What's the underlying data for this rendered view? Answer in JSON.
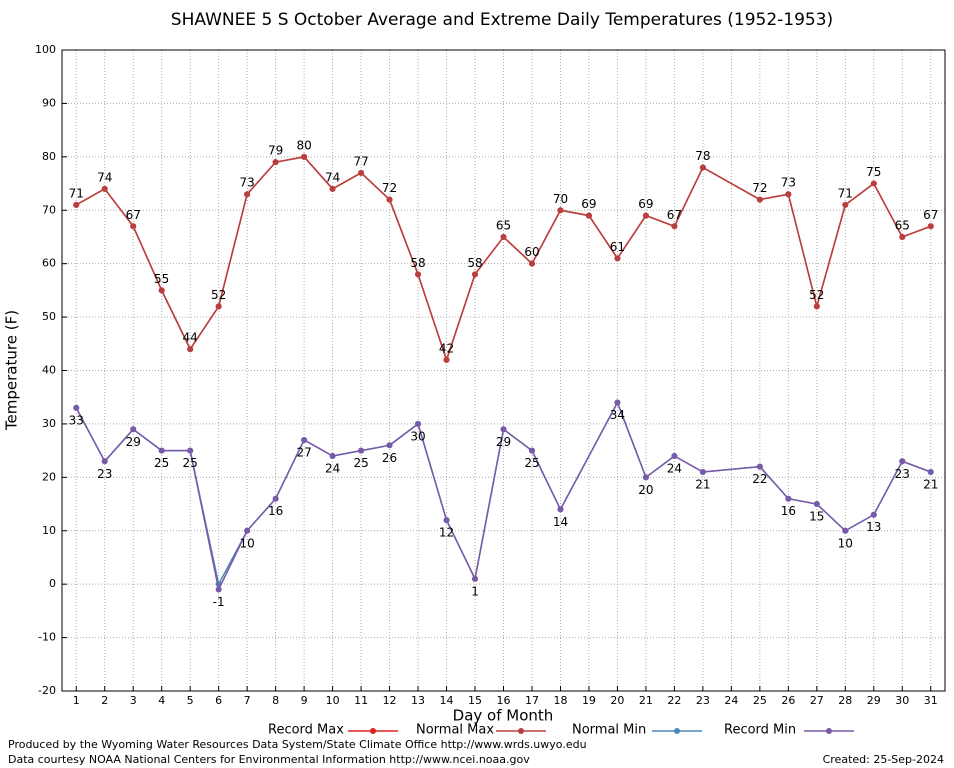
{
  "chart_data": {
    "type": "line",
    "title": "SHAWNEE 5 S October Average and Extreme Daily Temperatures (1952-1953)",
    "x_label": "Day of Month",
    "y_label": "Temperature (F)",
    "xlim": [
      0.5,
      31.5
    ],
    "xticks": [
      1,
      2,
      3,
      4,
      5,
      6,
      7,
      8,
      9,
      10,
      11,
      12,
      13,
      14,
      15,
      16,
      17,
      18,
      19,
      20,
      21,
      22,
      23,
      24,
      25,
      26,
      27,
      28,
      29,
      30,
      31
    ],
    "ylim": [
      -20,
      100
    ],
    "yticks": [
      -20,
      -10,
      0,
      10,
      20,
      30,
      40,
      50,
      60,
      70,
      80,
      90,
      100
    ],
    "grid": true,
    "legend": "bottom",
    "series": [
      {
        "name": "Record Max",
        "color": "#e02020",
        "x": [
          1,
          2,
          3,
          4,
          5,
          6,
          7,
          8,
          9,
          10,
          11,
          12,
          13,
          14,
          15,
          16,
          17,
          18,
          19,
          20,
          21,
          22,
          23,
          25,
          26,
          27,
          28,
          29,
          30,
          31
        ],
        "values": [
          71,
          74,
          67,
          55,
          44,
          52,
          73,
          79,
          80,
          74,
          77,
          72,
          58,
          42,
          58,
          65,
          60,
          70,
          69,
          61,
          69,
          67,
          78,
          72,
          73,
          52,
          71,
          75,
          65,
          67
        ]
      },
      {
        "name": "Normal Max",
        "color": "#b84040",
        "x": [
          1,
          2,
          3,
          4,
          5,
          6,
          7,
          8,
          9,
          10,
          11,
          12,
          13,
          14,
          15,
          16,
          17,
          18,
          19,
          20,
          21,
          22,
          23,
          25,
          26,
          27,
          28,
          29,
          30,
          31
        ],
        "values": [
          71,
          74,
          67,
          55,
          44,
          52,
          73,
          79,
          80,
          74,
          77,
          72,
          58,
          42,
          58,
          65,
          60,
          70,
          69,
          61,
          69,
          67,
          78,
          72,
          73,
          52,
          71,
          75,
          65,
          67
        ],
        "labels": "above"
      },
      {
        "name": "Normal Min",
        "color": "#4a86b8",
        "x": [
          1,
          2,
          3,
          4,
          5,
          6,
          7,
          8,
          9,
          10,
          11,
          12,
          13,
          14,
          15,
          16,
          17,
          18,
          20,
          21,
          22,
          23,
          25,
          26,
          27,
          28,
          29,
          30,
          31
        ],
        "values": [
          33,
          23,
          29,
          25,
          25,
          0,
          10,
          16,
          27,
          24,
          25,
          26,
          30,
          12,
          1,
          29,
          25,
          14,
          34,
          20,
          24,
          21,
          22,
          16,
          15,
          10,
          13,
          23,
          21
        ]
      },
      {
        "name": "Record Min",
        "color": "#7a5aa8",
        "x": [
          1,
          2,
          3,
          4,
          5,
          6,
          7,
          8,
          9,
          10,
          11,
          12,
          13,
          14,
          15,
          16,
          17,
          18,
          20,
          21,
          22,
          23,
          25,
          26,
          27,
          28,
          29,
          30,
          31
        ],
        "values": [
          33,
          23,
          29,
          25,
          25,
          -1,
          10,
          16,
          27,
          24,
          25,
          26,
          30,
          12,
          1,
          29,
          25,
          14,
          34,
          20,
          24,
          21,
          22,
          16,
          15,
          10,
          13,
          23,
          21
        ],
        "labels": "below"
      }
    ],
    "footer_left": [
      "Produced by the Wyoming Water Resources Data System/State Climate Office http://www.wrds.uwyo.edu",
      "Data courtesy NOAA National Centers for Environmental Information http://www.ncei.noaa.gov"
    ],
    "footer_right": "Created:  25-Sep-2024"
  }
}
